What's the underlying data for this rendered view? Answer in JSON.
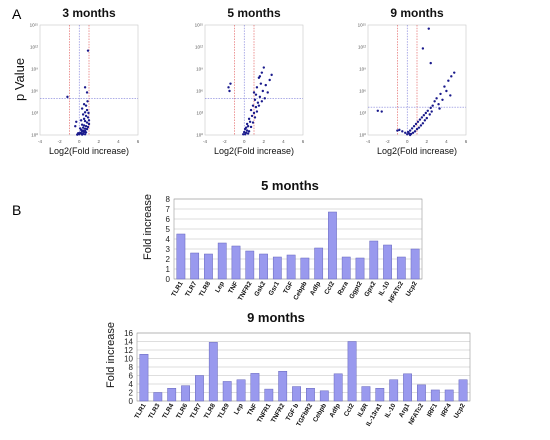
{
  "panels": {
    "a_letter": "A",
    "b_letter": "B"
  },
  "volcano": {
    "ylabel": "p Value",
    "xlabel": "Log2(Fold increase)",
    "x_ticks": [
      "-4",
      "-2",
      "0",
      "2",
      "4",
      "6"
    ],
    "y_ticks": [
      "10⁰",
      "10³",
      "10⁶",
      "10⁹",
      "10¹²",
      "10¹⁵"
    ],
    "colors": {
      "points": "#1a1a8c",
      "red_lines": "#e05050",
      "blue_lines": "#5b5bcf"
    }
  },
  "chart_data": [
    {
      "type": "scatter",
      "title": "3 months",
      "xlim": [
        -4,
        6
      ],
      "ylim_log10": [
        0,
        15
      ],
      "thresholds": {
        "log2fc": [
          -1,
          1
        ],
        "p_line": 5
      },
      "points": [
        [
          0.9,
          11.5
        ],
        [
          0.6,
          6.5
        ],
        [
          0.8,
          5.8
        ],
        [
          0.5,
          4.2
        ],
        [
          0.7,
          4.0
        ],
        [
          0.3,
          3.6
        ],
        [
          0.8,
          3.4
        ],
        [
          0.6,
          3.1
        ],
        [
          0.4,
          2.8
        ],
        [
          0.7,
          2.6
        ],
        [
          0.9,
          2.4
        ],
        [
          0.5,
          2.2
        ],
        [
          0.2,
          2.0
        ],
        [
          0.6,
          1.9
        ],
        [
          0.8,
          1.7
        ],
        [
          1.0,
          1.5
        ],
        [
          0.3,
          1.4
        ],
        [
          0.5,
          1.3
        ],
        [
          0.7,
          1.2
        ],
        [
          0.9,
          1.1
        ],
        [
          0.4,
          1.0
        ],
        [
          0.1,
          0.9
        ],
        [
          0.6,
          0.85
        ],
        [
          0.8,
          0.8
        ],
        [
          0.2,
          0.7
        ],
        [
          0.4,
          0.6
        ],
        [
          0.6,
          0.55
        ],
        [
          0.3,
          0.45
        ],
        [
          0.5,
          0.4
        ],
        [
          0.7,
          0.35
        ],
        [
          0.1,
          0.3
        ],
        [
          -0.1,
          0.25
        ],
        [
          0.2,
          0.2
        ],
        [
          0.4,
          0.15
        ],
        [
          0.6,
          0.1
        ],
        [
          0.0,
          0.1
        ],
        [
          0.3,
          0.05
        ],
        [
          -0.2,
          0.05
        ],
        [
          -1.2,
          5.2
        ],
        [
          -0.3,
          1.8
        ],
        [
          -0.4,
          1.2
        ],
        [
          0.95,
          3.0
        ],
        [
          1.0,
          2.0
        ],
        [
          0.85,
          4.6
        ]
      ]
    },
    {
      "type": "scatter",
      "title": "5 months",
      "xlim": [
        -4,
        6
      ],
      "ylim_log10": [
        0,
        15
      ],
      "thresholds": {
        "log2fc": [
          -1,
          1
        ],
        "p_line": 5
      },
      "points": [
        [
          -1.6,
          6.5
        ],
        [
          -1.5,
          6.0
        ],
        [
          -1.4,
          7.0
        ],
        [
          1.8,
          8.5
        ],
        [
          2.0,
          9.2
        ],
        [
          1.5,
          7.8
        ],
        [
          1.7,
          7.0
        ],
        [
          1.3,
          6.5
        ],
        [
          1.9,
          6.0
        ],
        [
          1.2,
          5.5
        ],
        [
          1.6,
          5.2
        ],
        [
          1.1,
          4.8
        ],
        [
          1.4,
          4.4
        ],
        [
          0.9,
          4.0
        ],
        [
          1.2,
          3.8
        ],
        [
          0.7,
          3.4
        ],
        [
          1.0,
          3.0
        ],
        [
          0.8,
          2.6
        ],
        [
          0.5,
          2.2
        ],
        [
          0.6,
          1.8
        ],
        [
          0.3,
          1.5
        ],
        [
          0.4,
          1.2
        ],
        [
          0.2,
          1.0
        ],
        [
          0.1,
          0.8
        ],
        [
          0.3,
          0.6
        ],
        [
          0.0,
          0.4
        ],
        [
          0.2,
          0.3
        ],
        [
          0.4,
          0.2
        ],
        [
          0.1,
          0.1
        ],
        [
          -0.1,
          0.1
        ],
        [
          0.5,
          0.5
        ],
        [
          0.7,
          1.1
        ],
        [
          0.9,
          1.7
        ],
        [
          1.1,
          2.4
        ],
        [
          1.3,
          3.2
        ],
        [
          1.5,
          4.0
        ],
        [
          1.8,
          4.6
        ],
        [
          2.1,
          5.0
        ],
        [
          2.4,
          5.8
        ],
        [
          2.2,
          6.8
        ],
        [
          2.6,
          7.5
        ],
        [
          2.8,
          8.2
        ],
        [
          1.0,
          5.8
        ],
        [
          1.6,
          8.0
        ]
      ]
    },
    {
      "type": "scatter",
      "title": "9 months",
      "xlim": [
        -4,
        6
      ],
      "ylim_log10": [
        0,
        15
      ],
      "thresholds": {
        "log2fc": [
          -1,
          1
        ],
        "p_line": 3.8
      },
      "points": [
        [
          2.2,
          14.5
        ],
        [
          1.6,
          11.8
        ],
        [
          2.4,
          9.8
        ],
        [
          4.8,
          8.5
        ],
        [
          4.5,
          8.0
        ],
        [
          4.2,
          7.4
        ],
        [
          3.8,
          6.6
        ],
        [
          4.0,
          6.0
        ],
        [
          3.4,
          5.6
        ],
        [
          3.0,
          5.0
        ],
        [
          2.8,
          4.6
        ],
        [
          3.2,
          4.2
        ],
        [
          2.6,
          4.0
        ],
        [
          2.4,
          3.7
        ],
        [
          2.1,
          3.3
        ],
        [
          1.9,
          3.0
        ],
        [
          1.7,
          2.7
        ],
        [
          1.5,
          2.4
        ],
        [
          1.3,
          2.1
        ],
        [
          1.1,
          1.8
        ],
        [
          0.9,
          1.5
        ],
        [
          0.7,
          1.2
        ],
        [
          0.5,
          0.9
        ],
        [
          0.3,
          0.6
        ],
        [
          0.1,
          0.4
        ],
        [
          -0.2,
          0.3
        ],
        [
          -0.5,
          0.5
        ],
        [
          -0.8,
          0.7
        ],
        [
          -1.0,
          0.6
        ],
        [
          0.2,
          0.2
        ],
        [
          0.4,
          0.15
        ],
        [
          0.6,
          0.3
        ],
        [
          0.8,
          0.5
        ],
        [
          1.0,
          0.8
        ],
        [
          1.2,
          1.0
        ],
        [
          1.4,
          1.3
        ],
        [
          1.6,
          1.6
        ],
        [
          1.8,
          2.0
        ],
        [
          2.0,
          2.3
        ],
        [
          2.3,
          2.8
        ],
        [
          2.5,
          3.2
        ],
        [
          3.6,
          4.8
        ],
        [
          4.4,
          5.4
        ],
        [
          3.3,
          3.6
        ],
        [
          -2.6,
          3.2
        ],
        [
          -3.0,
          3.3
        ],
        [
          0.0,
          0.1
        ],
        [
          0.3,
          0.0
        ]
      ]
    },
    {
      "type": "bar",
      "title": "5 months",
      "ylabel": "Fold increase",
      "ylim": [
        0,
        8
      ],
      "yticks": [
        0,
        1,
        2,
        3,
        4,
        5,
        6,
        7,
        8
      ],
      "bar_color": "#9999ee",
      "categories": [
        "TLR1",
        "TLR7",
        "TLR8",
        "Lep",
        "TNF",
        "TNFR2",
        "Gsk2",
        "Gsr1",
        "TGF",
        "Cebpb",
        "Adfp",
        "Ccl2",
        "Rxra",
        "Ggpt2",
        "Gpx2",
        "IL-10",
        "NFATc2",
        "Ucp2"
      ],
      "values": [
        4.5,
        2.6,
        2.5,
        3.6,
        3.3,
        2.8,
        2.5,
        2.2,
        2.4,
        2.1,
        3.1,
        6.7,
        2.2,
        2.1,
        3.8,
        3.4,
        2.2,
        3.0
      ]
    },
    {
      "type": "bar",
      "title": "9 months",
      "ylabel": "Fold increase",
      "ylim": [
        0,
        16
      ],
      "yticks": [
        0,
        2,
        4,
        6,
        8,
        10,
        12,
        14,
        16
      ],
      "bar_color": "#9999ee",
      "categories": [
        "TLR1",
        "TLR3",
        "TLR4",
        "TLR6",
        "TLR7",
        "TLR8",
        "TLR9",
        "Lep",
        "TNF",
        "TNFR1",
        "TNFR2",
        "TGF b",
        "TGFbR2",
        "Cebpb",
        "Adfp",
        "Ccl2",
        "IL6R",
        "IL-13ra1",
        "IL-10",
        "Arg1",
        "NFATc2",
        "IRF1",
        "IRF4",
        "Ucp2"
      ],
      "values": [
        11.0,
        2.0,
        3.0,
        3.6,
        6.0,
        13.8,
        4.6,
        5.0,
        6.5,
        2.8,
        7.0,
        3.4,
        3.0,
        2.4,
        6.4,
        14.0,
        3.4,
        3.0,
        5.0,
        6.4,
        3.8,
        2.6,
        2.6,
        5.0
      ]
    }
  ]
}
